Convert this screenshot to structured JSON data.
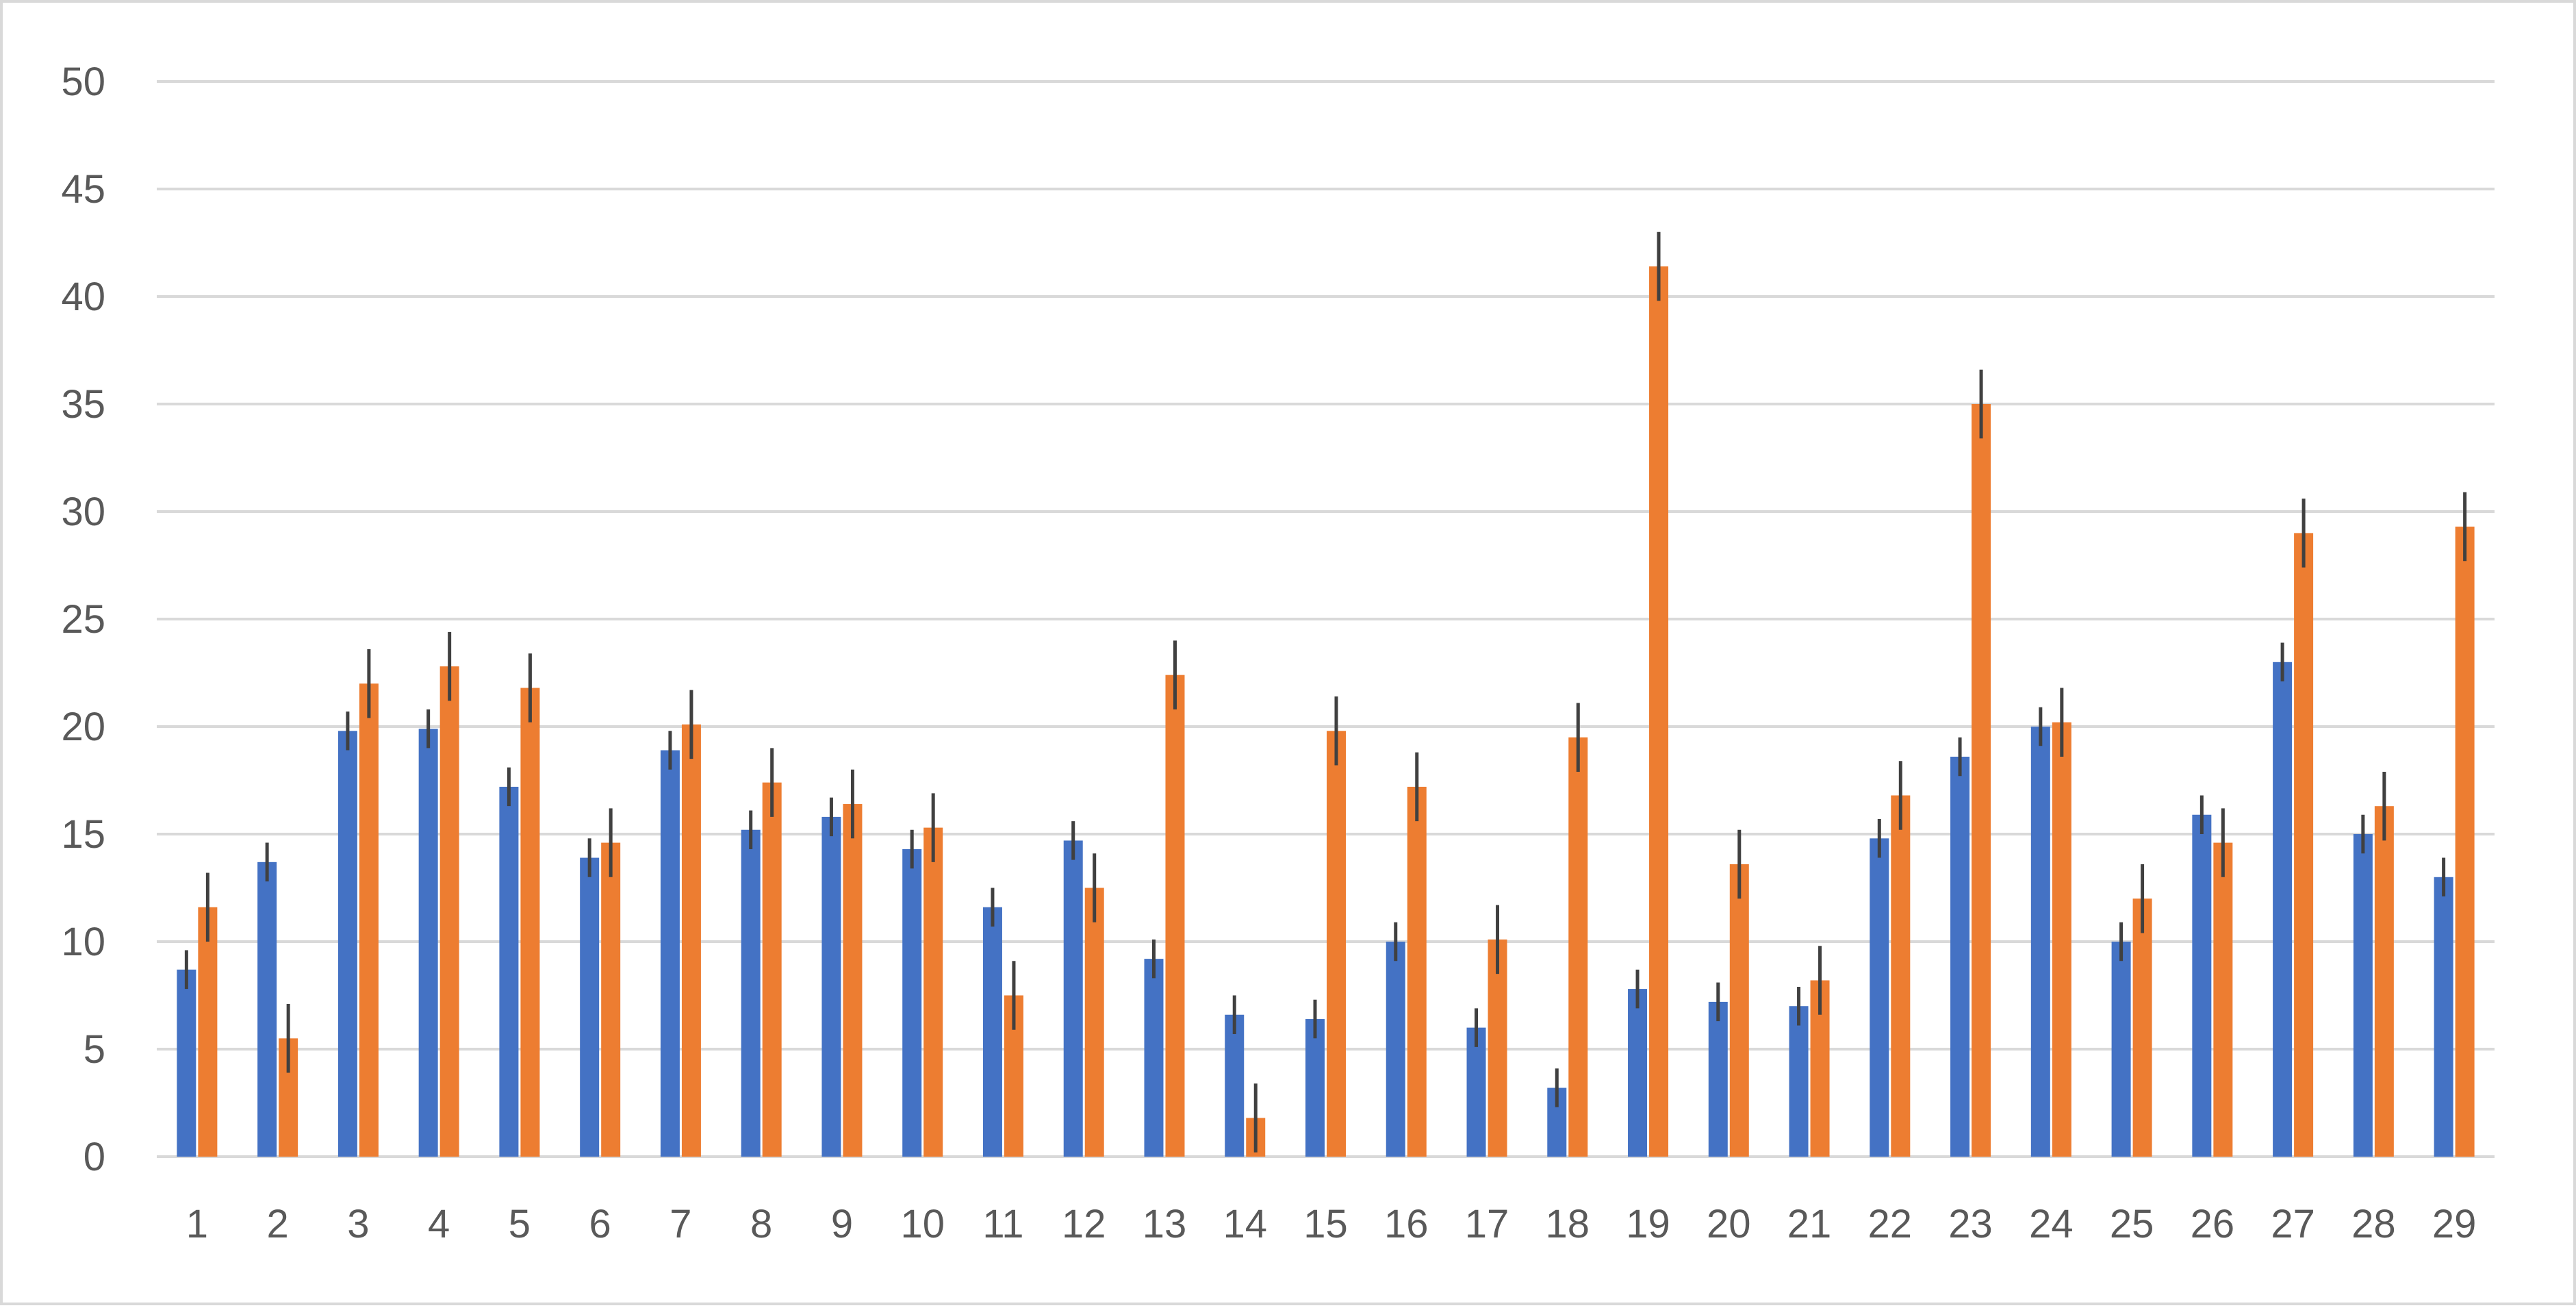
{
  "chart_data": {
    "type": "bar",
    "categories": [
      "1",
      "2",
      "3",
      "4",
      "5",
      "6",
      "7",
      "8",
      "9",
      "10",
      "11",
      "12",
      "13",
      "14",
      "15",
      "16",
      "17",
      "18",
      "19",
      "20",
      "21",
      "22",
      "23",
      "24",
      "25",
      "26",
      "27",
      "28",
      "29"
    ],
    "series": [
      {
        "color": "#4472c4",
        "values": [
          8.7,
          13.7,
          19.8,
          19.9,
          17.2,
          13.9,
          18.9,
          15.2,
          15.8,
          14.3,
          11.6,
          14.7,
          9.2,
          6.6,
          6.4,
          10.0,
          6.0,
          3.2,
          7.8,
          7.2,
          7.0,
          14.8,
          18.6,
          20.0,
          10.0,
          15.9,
          23.0,
          15.0,
          13.0
        ],
        "error": [
          0.9,
          0.9,
          0.9,
          0.9,
          0.9,
          0.9,
          0.9,
          0.9,
          0.9,
          0.9,
          0.9,
          0.9,
          0.9,
          0.9,
          0.9,
          0.9,
          0.9,
          0.9,
          0.9,
          0.9,
          0.9,
          0.9,
          0.9,
          0.9,
          0.9,
          0.9,
          0.9,
          0.9,
          0.9
        ]
      },
      {
        "color": "#ed7d31",
        "values": [
          11.6,
          5.5,
          22.0,
          22.8,
          21.8,
          14.6,
          20.1,
          17.4,
          16.4,
          15.3,
          7.5,
          12.5,
          22.4,
          1.8,
          19.8,
          17.2,
          10.1,
          19.5,
          41.4,
          13.6,
          8.2,
          16.8,
          35.0,
          20.2,
          12.0,
          14.6,
          29.0,
          16.3,
          29.3
        ],
        "error": [
          1.6,
          1.6,
          1.6,
          1.6,
          1.6,
          1.6,
          1.6,
          1.6,
          1.6,
          1.6,
          1.6,
          1.6,
          1.6,
          1.6,
          1.6,
          1.6,
          1.6,
          1.6,
          1.6,
          1.6,
          1.6,
          1.6,
          1.6,
          1.6,
          1.6,
          1.6,
          1.6,
          1.6,
          1.6
        ]
      }
    ],
    "y_ticks": [
      0,
      5,
      10,
      15,
      20,
      25,
      30,
      35,
      40,
      45,
      50
    ],
    "ylim": [
      0,
      50
    ],
    "grid": true,
    "legend": "none",
    "error_bar_color": "#404040"
  }
}
